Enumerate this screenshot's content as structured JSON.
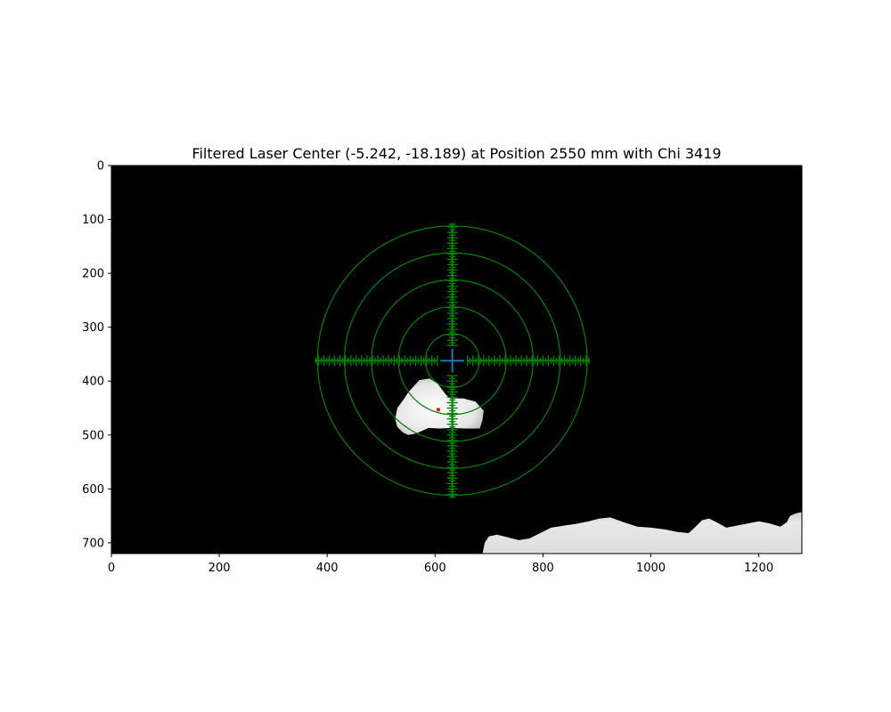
{
  "chart_data": {
    "type": "image",
    "title": "Filtered Laser Center (-5.242, -18.189) at Position 2550 mm with Chi 3419",
    "xlabel": "",
    "ylabel": "",
    "xlim": [
      0,
      1280
    ],
    "ylim": [
      720,
      0
    ],
    "x_ticks": [
      "0",
      "200",
      "400",
      "600",
      "800",
      "1000",
      "1200"
    ],
    "y_ticks": [
      "0",
      "100",
      "200",
      "300",
      "400",
      "500",
      "600",
      "700"
    ],
    "background_color": "#000000",
    "reticle": {
      "center": [
        632,
        362
      ],
      "ring_radii": [
        50,
        100,
        150,
        200,
        250
      ],
      "color": "#008000",
      "arm_gap": 28,
      "arm_length": 255,
      "tick_spacing": 5
    },
    "center_marker": {
      "x": 632,
      "y": 362,
      "half_size": 22,
      "color": "#1f77b4"
    },
    "red_point": {
      "x": 606,
      "y": 453,
      "color": "#d62728"
    },
    "laser_blob": {
      "outline": [
        [
          571,
          398
        ],
        [
          590,
          395
        ],
        [
          605,
          405
        ],
        [
          620,
          425
        ],
        [
          628,
          432
        ],
        [
          652,
          432
        ],
        [
          675,
          438
        ],
        [
          690,
          455
        ],
        [
          688,
          472
        ],
        [
          683,
          488
        ],
        [
          660,
          488
        ],
        [
          630,
          487
        ],
        [
          608,
          488
        ],
        [
          588,
          487
        ],
        [
          565,
          497
        ],
        [
          550,
          500
        ],
        [
          540,
          495
        ],
        [
          530,
          485
        ],
        [
          526,
          470
        ],
        [
          530,
          450
        ],
        [
          541,
          435
        ],
        [
          551,
          420
        ],
        [
          560,
          410
        ]
      ],
      "color": "#e8e8e8"
    },
    "bottom_blob": {
      "outline": [
        [
          688,
          720
        ],
        [
          692,
          700
        ],
        [
          700,
          688
        ],
        [
          715,
          685
        ],
        [
          735,
          690
        ],
        [
          755,
          695
        ],
        [
          775,
          692
        ],
        [
          795,
          682
        ],
        [
          815,
          672
        ],
        [
          840,
          668
        ],
        [
          860,
          665
        ],
        [
          885,
          660
        ],
        [
          905,
          655
        ],
        [
          925,
          653
        ],
        [
          950,
          662
        ],
        [
          975,
          670
        ],
        [
          1000,
          672
        ],
        [
          1025,
          675
        ],
        [
          1050,
          680
        ],
        [
          1070,
          682
        ],
        [
          1083,
          670
        ],
        [
          1095,
          658
        ],
        [
          1108,
          655
        ],
        [
          1122,
          662
        ],
        [
          1140,
          672
        ],
        [
          1160,
          668
        ],
        [
          1180,
          664
        ],
        [
          1200,
          660
        ],
        [
          1220,
          664
        ],
        [
          1240,
          670
        ],
        [
          1252,
          662
        ],
        [
          1258,
          650
        ],
        [
          1270,
          645
        ],
        [
          1280,
          643
        ],
        [
          1280,
          720
        ]
      ],
      "color": "#e0e0e0"
    }
  }
}
